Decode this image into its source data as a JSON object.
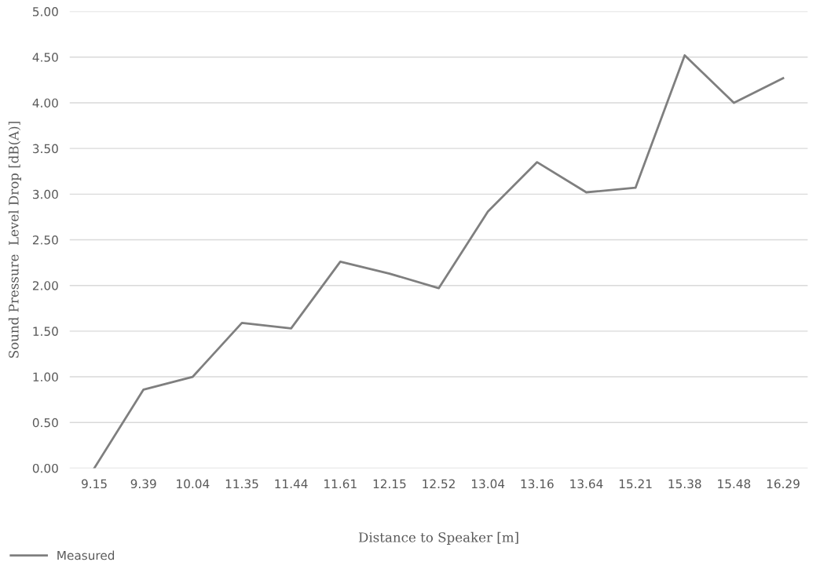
{
  "chart_data": {
    "type": "line",
    "xlabel": "Distance to Speaker [m]",
    "ylabel": "Sound Pressure  Level Drop [dB(A)]",
    "categories": [
      "9.15",
      "9.39",
      "10.04",
      "11.35",
      "11.44",
      "11.61",
      "12.15",
      "12.52",
      "13.04",
      "13.16",
      "13.64",
      "15.21",
      "15.38",
      "15.48",
      "16.29"
    ],
    "series": [
      {
        "name": "Measured",
        "color": "#7f7f7f",
        "values": [
          0,
          0.86,
          1.0,
          1.59,
          1.53,
          2.26,
          2.13,
          1.97,
          2.81,
          3.35,
          3.02,
          3.07,
          4.52,
          4.0,
          4.27
        ]
      }
    ],
    "ylim": [
      0,
      5
    ],
    "yticks": [
      {
        "value": 0,
        "label": "0.00"
      },
      {
        "value": 0.5,
        "label": "0.50"
      },
      {
        "value": 1,
        "label": "1.00"
      },
      {
        "value": 1.5,
        "label": "1.50"
      },
      {
        "value": 2,
        "label": "2.00"
      },
      {
        "value": 2.5,
        "label": "2.50"
      },
      {
        "value": 3,
        "label": "3.00"
      },
      {
        "value": 3.5,
        "label": "3.50"
      },
      {
        "value": 4,
        "label": "4.00"
      },
      {
        "value": 4.5,
        "label": "4.50"
      },
      {
        "value": 5,
        "label": "5.00"
      }
    ],
    "grid": "y",
    "legend": "bottom left",
    "marker": "none",
    "line_style": "solid"
  }
}
